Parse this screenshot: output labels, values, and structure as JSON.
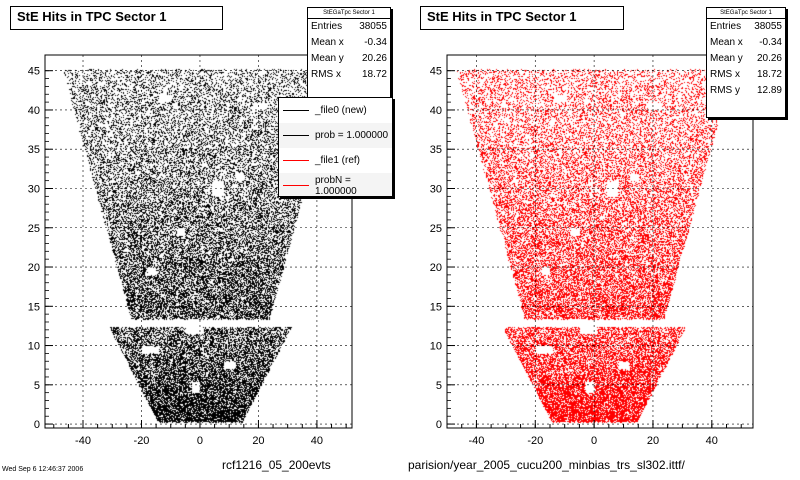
{
  "chart_data": [
    {
      "type": "scatter",
      "title": "StE Hits in TPC Sector 1",
      "color": "#000000",
      "xlim": [
        -53,
        52
      ],
      "ylim": [
        -0.5,
        47
      ],
      "xticks": [
        -40,
        -20,
        0,
        20,
        40
      ],
      "xtick_labels": [
        "-40",
        "-20",
        "0",
        "20",
        "40"
      ],
      "yticks": [
        0,
        5,
        10,
        15,
        20,
        25,
        30,
        35,
        40,
        45
      ],
      "ytick_labels": [
        "0",
        "5",
        "10",
        "15",
        "20",
        "25",
        "30",
        "35",
        "40",
        "45"
      ],
      "grid": true,
      "region": {
        "y_min": 0.3,
        "y_max": 45.2,
        "half_width_at_bottom": 14,
        "half_width_at_top": 47,
        "gap_y": [
          12.4,
          13.4
        ]
      },
      "stats": {
        "title": "StEGaTpc Sector 1",
        "rows": [
          {
            "label": "Entries",
            "value": "38055"
          },
          {
            "label": "Mean x",
            "value": "-0.34"
          },
          {
            "label": "Mean y",
            "value": "20.26"
          },
          {
            "label": "RMS x",
            "value": "18.72"
          }
        ]
      },
      "legend": {
        "entries": [
          {
            "label": "_file0 (new)",
            "color": "#000000"
          },
          {
            "label": "prob = 1.000000",
            "color": "#000000"
          },
          {
            "label": "_file1 (ref)",
            "color": "#ff0000"
          },
          {
            "label": "probN = 1.000000",
            "color": "#ff0000"
          }
        ]
      },
      "caption": "rcf1216_05_200evts"
    },
    {
      "type": "scatter",
      "title": "StE Hits in TPC Sector 1",
      "color": "#ff0000",
      "xlim": [
        -50,
        54
      ],
      "ylim": [
        -0.5,
        47
      ],
      "xticks": [
        -40,
        -20,
        0,
        20,
        40
      ],
      "xtick_labels": [
        "-40",
        "-20",
        "0",
        "20",
        "40"
      ],
      "yticks": [
        0,
        5,
        10,
        15,
        20,
        25,
        30,
        35,
        40,
        45
      ],
      "ytick_labels": [
        "0",
        "5",
        "10",
        "15",
        "20",
        "25",
        "30",
        "35",
        "40",
        "45"
      ],
      "grid": true,
      "region": {
        "y_min": 0.3,
        "y_max": 45.2,
        "half_width_at_bottom": 14,
        "half_width_at_top": 47,
        "gap_y": [
          12.4,
          13.4
        ]
      },
      "stats": {
        "title": "StEGaTpc Sector 1",
        "rows": [
          {
            "label": "Entries",
            "value": "38055"
          },
          {
            "label": "Mean x",
            "value": "-0.34"
          },
          {
            "label": "Mean y",
            "value": "20.26"
          },
          {
            "label": "RMS x",
            "value": "18.72"
          },
          {
            "label": "RMS y",
            "value": "12.89"
          }
        ]
      },
      "caption": "parision/year_2005_cucu200_minbias_trs_sl302.ittf/"
    }
  ],
  "footer": {
    "left_text": "Wed Sep 6 12:46:37 2006"
  }
}
